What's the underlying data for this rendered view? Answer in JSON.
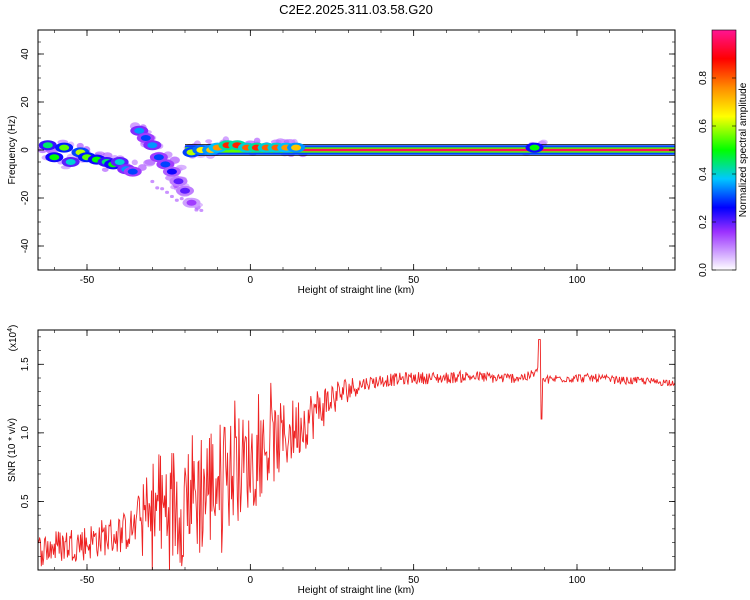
{
  "title": "C2E2.2025.311.03.58.G20",
  "chart_data": [
    {
      "type": "heatmap",
      "name": "spectrogram",
      "xlabel": "Height of straight line (km)",
      "ylabel": "Frequency (Hz)",
      "xlim": [
        -65,
        130
      ],
      "ylim": [
        -50,
        50
      ],
      "x_ticks": [
        -50,
        0,
        50,
        100
      ],
      "y_ticks": [
        -40,
        -20,
        0,
        20,
        40
      ],
      "colorbar": {
        "label": "Normalized spectral amplitude",
        "range": [
          0,
          1
        ],
        "ticks": [
          0.0,
          0.2,
          0.4,
          0.6,
          0.8
        ],
        "tick_labels": [
          "0.0",
          "0.2",
          "0.4",
          "0.6",
          "0.8"
        ],
        "colors": [
          "#ffffff",
          "#9b30ff",
          "#0000ff",
          "#00c8ff",
          "#00ff00",
          "#ffff00",
          "#ff8c00",
          "#ff0000",
          "#ff1493"
        ]
      },
      "ridge_band": {
        "x_range": [
          -20,
          130
        ],
        "freq_center": 0,
        "amplitude": 0.95
      },
      "clusters": [
        {
          "x": -62,
          "f": 2,
          "a": 0.45
        },
        {
          "x": -60,
          "f": -3,
          "a": 0.5
        },
        {
          "x": -57,
          "f": 1,
          "a": 0.55
        },
        {
          "x": -55,
          "f": -5,
          "a": 0.4
        },
        {
          "x": -52,
          "f": -1,
          "a": 0.6
        },
        {
          "x": -50,
          "f": -3,
          "a": 0.55
        },
        {
          "x": -47,
          "f": -4,
          "a": 0.5
        },
        {
          "x": -44,
          "f": -5,
          "a": 0.45
        },
        {
          "x": -42,
          "f": -6,
          "a": 0.5
        },
        {
          "x": -40,
          "f": -5,
          "a": 0.4
        },
        {
          "x": -38,
          "f": -8,
          "a": 0.35
        },
        {
          "x": -36,
          "f": -9,
          "a": 0.3
        },
        {
          "x": -34,
          "f": 8,
          "a": 0.35
        },
        {
          "x": -32,
          "f": 5,
          "a": 0.3
        },
        {
          "x": -30,
          "f": 2,
          "a": 0.35
        },
        {
          "x": -28,
          "f": -3,
          "a": 0.3
        },
        {
          "x": -26,
          "f": -6,
          "a": 0.3
        },
        {
          "x": -24,
          "f": -9,
          "a": 0.25
        },
        {
          "x": -22,
          "f": -13,
          "a": 0.2
        },
        {
          "x": -20,
          "f": -17,
          "a": 0.2
        },
        {
          "x": -18,
          "f": -22,
          "a": 0.15
        },
        {
          "x": -18,
          "f": -1,
          "a": 0.6
        },
        {
          "x": -15,
          "f": 0,
          "a": 0.65
        },
        {
          "x": -12,
          "f": 0,
          "a": 0.7
        },
        {
          "x": -10,
          "f": 1,
          "a": 0.75
        },
        {
          "x": -7,
          "f": 2,
          "a": 0.85
        },
        {
          "x": -4,
          "f": 2,
          "a": 0.85
        },
        {
          "x": -1,
          "f": 1,
          "a": 0.8
        },
        {
          "x": 2,
          "f": 1,
          "a": 0.85
        },
        {
          "x": 5,
          "f": 1,
          "a": 0.8
        },
        {
          "x": 8,
          "f": 1,
          "a": 0.8
        },
        {
          "x": 11,
          "f": 1,
          "a": 0.75
        },
        {
          "x": 14,
          "f": 1,
          "a": 0.7
        },
        {
          "x": 87,
          "f": 1,
          "a": 0.5
        }
      ]
    },
    {
      "type": "line",
      "name": "snr",
      "xlabel": "Height of straight line (km)",
      "ylabel": "SNR (10 * v/v)",
      "y_scale_label": "(x10^4)",
      "xlim": [
        -65,
        130
      ],
      "ylim": [
        0,
        1.75
      ],
      "x_ticks": [
        -50,
        0,
        50,
        100
      ],
      "y_ticks": [
        0.5,
        1.0,
        1.5
      ],
      "y_tick_labels": [
        "0.5",
        "1.0",
        "1.5"
      ],
      "color": "#ee2222",
      "series": [
        {
          "name": "SNR",
          "x": [
            -65,
            -60,
            -55,
            -50,
            -45,
            -40,
            -35,
            -30,
            -25,
            -20,
            -15,
            -10,
            -5,
            0,
            5,
            10,
            15,
            20,
            25,
            30,
            35,
            40,
            45,
            50,
            55,
            60,
            65,
            70,
            75,
            80,
            85,
            88,
            90,
            95,
            100,
            105,
            110,
            115,
            120,
            125,
            130
          ],
          "y": [
            0.14,
            0.17,
            0.19,
            0.2,
            0.24,
            0.26,
            0.32,
            0.4,
            0.45,
            0.52,
            0.58,
            0.65,
            0.72,
            0.8,
            0.88,
            0.96,
            1.05,
            1.15,
            1.25,
            1.32,
            1.36,
            1.38,
            1.39,
            1.4,
            1.4,
            1.4,
            1.41,
            1.41,
            1.4,
            1.4,
            1.41,
            1.45,
            1.38,
            1.4,
            1.4,
            1.4,
            1.39,
            1.38,
            1.38,
            1.37,
            1.37
          ]
        }
      ],
      "noise_amplitude": [
        {
          "x": -65,
          "amp": 0.12
        },
        {
          "x": -35,
          "amp": 0.15
        },
        {
          "x": -30,
          "amp": 0.45
        },
        {
          "x": -15,
          "amp": 0.5
        },
        {
          "x": 0,
          "amp": 0.35
        },
        {
          "x": 20,
          "amp": 0.18
        },
        {
          "x": 35,
          "amp": 0.05
        },
        {
          "x": 130,
          "amp": 0.025
        }
      ],
      "spike": {
        "x": 88.5,
        "high": 1.68,
        "low": 1.1
      }
    }
  ]
}
